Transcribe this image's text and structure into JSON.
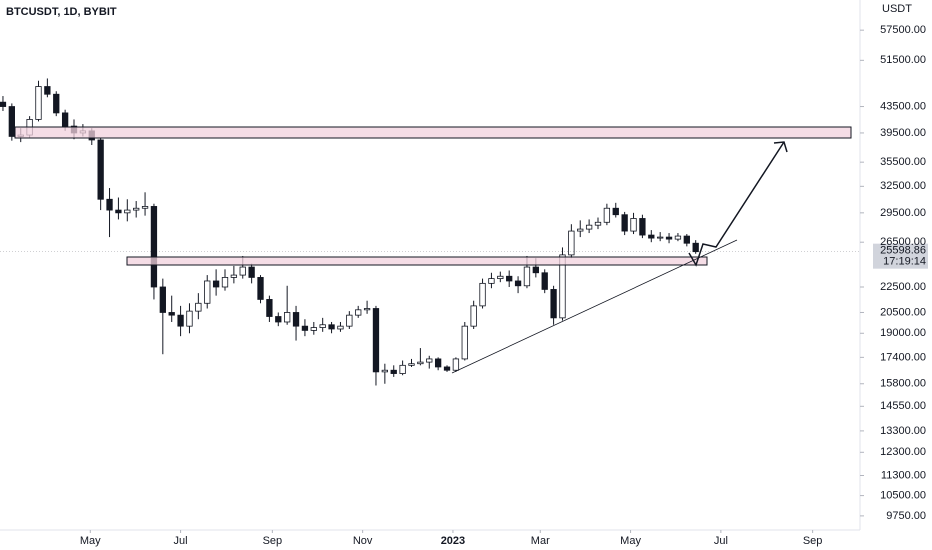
{
  "chart_data": {
    "type": "candlestick",
    "title": "BTCUSDT, 1D, BYBIT",
    "y_unit": "USDT",
    "log_scale": true,
    "grid": false,
    "up_color": "#ffffff",
    "down_color": "#131722",
    "xlim": [
      0,
      581
    ],
    "xticks": [
      {
        "value": 61,
        "label": "May"
      },
      {
        "value": 122,
        "label": "Jul"
      },
      {
        "value": 184,
        "label": "Sep"
      },
      {
        "value": 245,
        "label": "Nov"
      },
      {
        "value": 306,
        "label": "2023"
      },
      {
        "value": 365,
        "label": "Mar"
      },
      {
        "value": 426,
        "label": "May"
      },
      {
        "value": 487,
        "label": "Jul"
      },
      {
        "value": 549,
        "label": "Sep"
      }
    ],
    "ylim": [
      9260,
      64200
    ],
    "yticks": [
      {
        "value": 57500,
        "label": "57500.00"
      },
      {
        "value": 51500,
        "label": "51500.00"
      },
      {
        "value": 43500,
        "label": "43500.00"
      },
      {
        "value": 39500,
        "label": "39500.00"
      },
      {
        "value": 35500,
        "label": "35500.00"
      },
      {
        "value": 32500,
        "label": "32500.00"
      },
      {
        "value": 29500,
        "label": "29500.00"
      },
      {
        "value": 26500,
        "label": "26500.00"
      },
      {
        "value": 22500,
        "label": "22500.00"
      },
      {
        "value": 20500,
        "label": "20500.00"
      },
      {
        "value": 19000,
        "label": "19000.00"
      },
      {
        "value": 17400,
        "label": "17400.00"
      },
      {
        "value": 15800,
        "label": "15800.00"
      },
      {
        "value": 14550,
        "label": "14550.00"
      },
      {
        "value": 13300,
        "label": "13300.00"
      },
      {
        "value": 12300,
        "label": "12300.00"
      },
      {
        "value": 11300,
        "label": "11300.00"
      },
      {
        "value": 10500,
        "label": "10500.00"
      },
      {
        "value": 9750,
        "label": "9750.00"
      }
    ],
    "last_price": 25598.86,
    "countdown": "17:19:14",
    "x": [
      2,
      8,
      14,
      20,
      26,
      32,
      38,
      44,
      50,
      56,
      62,
      68,
      74,
      80,
      86,
      92,
      98,
      104,
      110,
      116,
      122,
      128,
      134,
      140,
      146,
      152,
      158,
      164,
      170,
      176,
      182,
      188,
      194,
      200,
      206,
      212,
      218,
      224,
      230,
      236,
      242,
      248,
      254,
      260,
      266,
      272,
      278,
      284,
      290,
      296,
      302,
      308,
      314,
      320,
      326,
      332,
      338,
      344,
      350,
      356,
      362,
      368,
      374,
      380,
      386,
      392,
      398,
      404,
      410,
      416,
      422,
      428,
      434,
      440,
      446,
      452,
      458,
      464,
      470
    ],
    "values": [
      [
        44200,
        45200,
        42800,
        43500
      ],
      [
        43500,
        44000,
        38400,
        39000
      ],
      [
        39000,
        40200,
        38200,
        39200
      ],
      [
        39200,
        42000,
        38800,
        41500
      ],
      [
        41500,
        47800,
        41200,
        46800
      ],
      [
        46800,
        48200,
        45000,
        45500
      ],
      [
        45500,
        46000,
        42000,
        42500
      ],
      [
        42500,
        43000,
        39800,
        40500
      ],
      [
        40500,
        41500,
        38600,
        39500
      ],
      [
        39500,
        40800,
        39000,
        39800
      ],
      [
        39800,
        40200,
        37800,
        38500
      ],
      [
        38500,
        38800,
        29800,
        31000
      ],
      [
        31000,
        32300,
        27000,
        29800
      ],
      [
        29800,
        31200,
        28800,
        29500
      ],
      [
        29500,
        31000,
        28600,
        29800
      ],
      [
        29800,
        30800,
        29000,
        30000
      ],
      [
        30000,
        31800,
        29200,
        30200
      ],
      [
        30200,
        30500,
        21500,
        22500
      ],
      [
        22500,
        23200,
        17600,
        20500
      ],
      [
        20500,
        21800,
        19800,
        20300
      ],
      [
        20300,
        21000,
        18800,
        19500
      ],
      [
        19500,
        21200,
        19000,
        20600
      ],
      [
        20600,
        22000,
        20000,
        21200
      ],
      [
        21200,
        23500,
        20800,
        23000
      ],
      [
        23000,
        24000,
        21800,
        22500
      ],
      [
        22500,
        24000,
        22200,
        23300
      ],
      [
        23300,
        24300,
        22800,
        23500
      ],
      [
        23500,
        25200,
        23200,
        24200
      ],
      [
        24200,
        24500,
        22800,
        23300
      ],
      [
        23300,
        23500,
        21200,
        21500
      ],
      [
        21500,
        21800,
        19800,
        20200
      ],
      [
        20200,
        20500,
        19500,
        19800
      ],
      [
        19800,
        22600,
        19600,
        20500
      ],
      [
        20500,
        21000,
        18500,
        19500
      ],
      [
        19500,
        20000,
        18800,
        19200
      ],
      [
        19200,
        19800,
        18900,
        19400
      ],
      [
        19400,
        20100,
        19100,
        19600
      ],
      [
        19600,
        19800,
        19000,
        19300
      ],
      [
        19300,
        19800,
        19100,
        19500
      ],
      [
        19500,
        20600,
        19300,
        20300
      ],
      [
        20300,
        21000,
        20100,
        20700
      ],
      [
        20700,
        21400,
        20400,
        20800
      ],
      [
        20800,
        21000,
        15700,
        16500
      ],
      [
        16500,
        17000,
        15800,
        16600
      ],
      [
        16600,
        16900,
        16200,
        16400
      ],
      [
        16400,
        17200,
        16300,
        16900
      ],
      [
        16900,
        17300,
        16800,
        17000
      ],
      [
        17000,
        18000,
        16900,
        17100
      ],
      [
        17100,
        17500,
        16700,
        17300
      ],
      [
        17300,
        17400,
        16600,
        16800
      ],
      [
        16800,
        16900,
        16500,
        16600
      ],
      [
        16600,
        17400,
        16500,
        17300
      ],
      [
        17300,
        19800,
        17200,
        19500
      ],
      [
        19500,
        21400,
        19300,
        21000
      ],
      [
        21000,
        23200,
        20800,
        22800
      ],
      [
        22800,
        23700,
        22400,
        23200
      ],
      [
        23200,
        23800,
        22900,
        23400
      ],
      [
        23400,
        23900,
        22500,
        23000
      ],
      [
        23000,
        23400,
        22000,
        22600
      ],
      [
        22600,
        25200,
        22400,
        24200
      ],
      [
        24200,
        25000,
        23300,
        23700
      ],
      [
        23700,
        24000,
        22000,
        22300
      ],
      [
        22300,
        22600,
        19600,
        20100
      ],
      [
        20100,
        26000,
        19900,
        25300
      ],
      [
        25300,
        28300,
        25000,
        27600
      ],
      [
        27600,
        28700,
        27000,
        27800
      ],
      [
        27800,
        28800,
        27400,
        28200
      ],
      [
        28200,
        29000,
        27800,
        28500
      ],
      [
        28500,
        30500,
        28200,
        30000
      ],
      [
        30000,
        30600,
        29000,
        29300
      ],
      [
        29300,
        29600,
        27200,
        27600
      ],
      [
        27600,
        29500,
        27300,
        28900
      ],
      [
        28900,
        29300,
        26900,
        27200
      ],
      [
        27200,
        27700,
        26500,
        26900
      ],
      [
        26900,
        27500,
        26600,
        27000
      ],
      [
        27000,
        27400,
        26400,
        26800
      ],
      [
        26800,
        27400,
        26600,
        27100
      ],
      [
        27100,
        27300,
        26100,
        26400
      ],
      [
        26400,
        26700,
        25400,
        25598.86
      ]
    ]
  }
}
